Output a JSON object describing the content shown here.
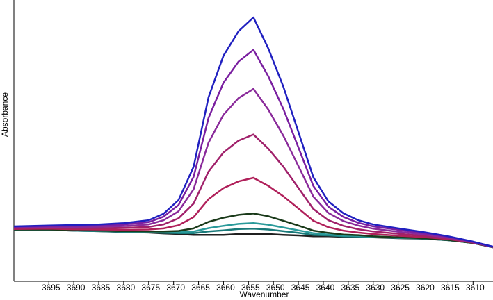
{
  "chart_data": {
    "type": "line",
    "xlabel": "Wavenumber",
    "ylabel": "Absorbance",
    "x": [
      3702,
      3695,
      3690,
      3685,
      3680,
      3675,
      3672,
      3669,
      3666,
      3663,
      3660,
      3657,
      3654,
      3651,
      3648,
      3645,
      3642,
      3639,
      3636,
      3633,
      3630,
      3625,
      3620,
      3615,
      3610,
      3606
    ],
    "xlim": [
      3702,
      3606
    ],
    "ylim": [
      0,
      100
    ],
    "xticks": [
      3695,
      3690,
      3685,
      3680,
      3675,
      3670,
      3665,
      3660,
      3655,
      3650,
      3645,
      3640,
      3635,
      3630,
      3625,
      3620,
      3615,
      3610
    ],
    "series": [
      {
        "color": "#202020",
        "values": [
          18.3,
          18.3,
          18.0,
          17.8,
          17.5,
          17.3,
          17.0,
          16.8,
          16.5,
          16.5,
          16.5,
          16.8,
          16.8,
          16.8,
          16.5,
          16.3,
          16.0,
          16.0,
          15.8,
          15.8,
          15.6,
          15.3,
          15.1,
          14.6,
          13.6,
          12.1
        ]
      },
      {
        "color": "#1a7a7a",
        "values": [
          18.3,
          18.3,
          18.0,
          17.8,
          17.6,
          17.4,
          17.2,
          17.1,
          17.1,
          17.7,
          18.1,
          18.6,
          18.7,
          18.4,
          17.8,
          17.2,
          16.5,
          16.3,
          16.0,
          15.9,
          15.7,
          15.4,
          15.2,
          14.6,
          13.6,
          12.1
        ]
      },
      {
        "color": "#2a9a9a",
        "values": [
          18.4,
          18.4,
          18.1,
          17.9,
          17.7,
          17.5,
          17.4,
          17.4,
          17.7,
          18.9,
          19.7,
          20.4,
          20.7,
          20.1,
          19.1,
          18.1,
          17.1,
          16.6,
          16.2,
          16.1,
          15.8,
          15.5,
          15.2,
          14.7,
          13.6,
          12.1
        ]
      },
      {
        "color": "#1a3a1a",
        "values": [
          18.4,
          18.4,
          18.2,
          18.0,
          17.8,
          17.7,
          17.7,
          17.9,
          18.8,
          21.1,
          22.6,
          23.6,
          24.1,
          23.1,
          21.5,
          19.8,
          18.0,
          17.2,
          16.6,
          16.4,
          16.0,
          15.6,
          15.3,
          14.7,
          13.6,
          12.1
        ]
      },
      {
        "color": "#b0205a",
        "values": [
          18.6,
          18.7,
          18.5,
          18.4,
          18.3,
          18.4,
          18.8,
          19.9,
          22.8,
          29.2,
          33.1,
          35.5,
          36.8,
          33.9,
          30.2,
          25.9,
          21.5,
          19.2,
          18.0,
          17.3,
          16.8,
          16.2,
          15.7,
          15.0,
          13.7,
          12.2
        ]
      },
      {
        "color": "#a0206a",
        "values": [
          18.9,
          19.0,
          18.9,
          18.9,
          19.0,
          19.3,
          20.2,
          22.4,
          27.6,
          39.0,
          45.8,
          50.0,
          52.2,
          47.1,
          40.7,
          33.2,
          25.7,
          21.7,
          19.7,
          18.5,
          17.7,
          16.9,
          16.2,
          15.2,
          13.8,
          12.2
        ]
      },
      {
        "color": "#8a2a9a",
        "values": [
          19.1,
          19.3,
          19.3,
          19.4,
          19.6,
          20.2,
          21.7,
          24.9,
          32.7,
          49.3,
          59.2,
          65.1,
          68.4,
          61.0,
          51.7,
          41.0,
          30.1,
          24.3,
          21.4,
          19.8,
          18.7,
          17.6,
          16.7,
          15.5,
          13.9,
          12.2
        ]
      },
      {
        "color": "#7a1fa0",
        "values": [
          19.3,
          19.6,
          19.7,
          19.8,
          20.2,
          21.0,
          23.0,
          27.1,
          37.1,
          58.1,
          70.6,
          78.1,
          82.3,
          72.8,
          61.2,
          47.6,
          33.9,
          26.5,
          22.9,
          20.8,
          19.5,
          18.3,
          17.1,
          15.8,
          14.0,
          12.3
        ]
      },
      {
        "color": "#2020c0",
        "values": [
          19.5,
          19.8,
          20.0,
          20.2,
          20.7,
          21.7,
          24.0,
          28.9,
          40.7,
          65.4,
          80.2,
          88.9,
          93.8,
          82.7,
          69.1,
          53.1,
          37.0,
          28.4,
          24.2,
          21.7,
          20.2,
          18.8,
          17.5,
          16.0,
          14.1,
          12.3
        ]
      }
    ]
  }
}
